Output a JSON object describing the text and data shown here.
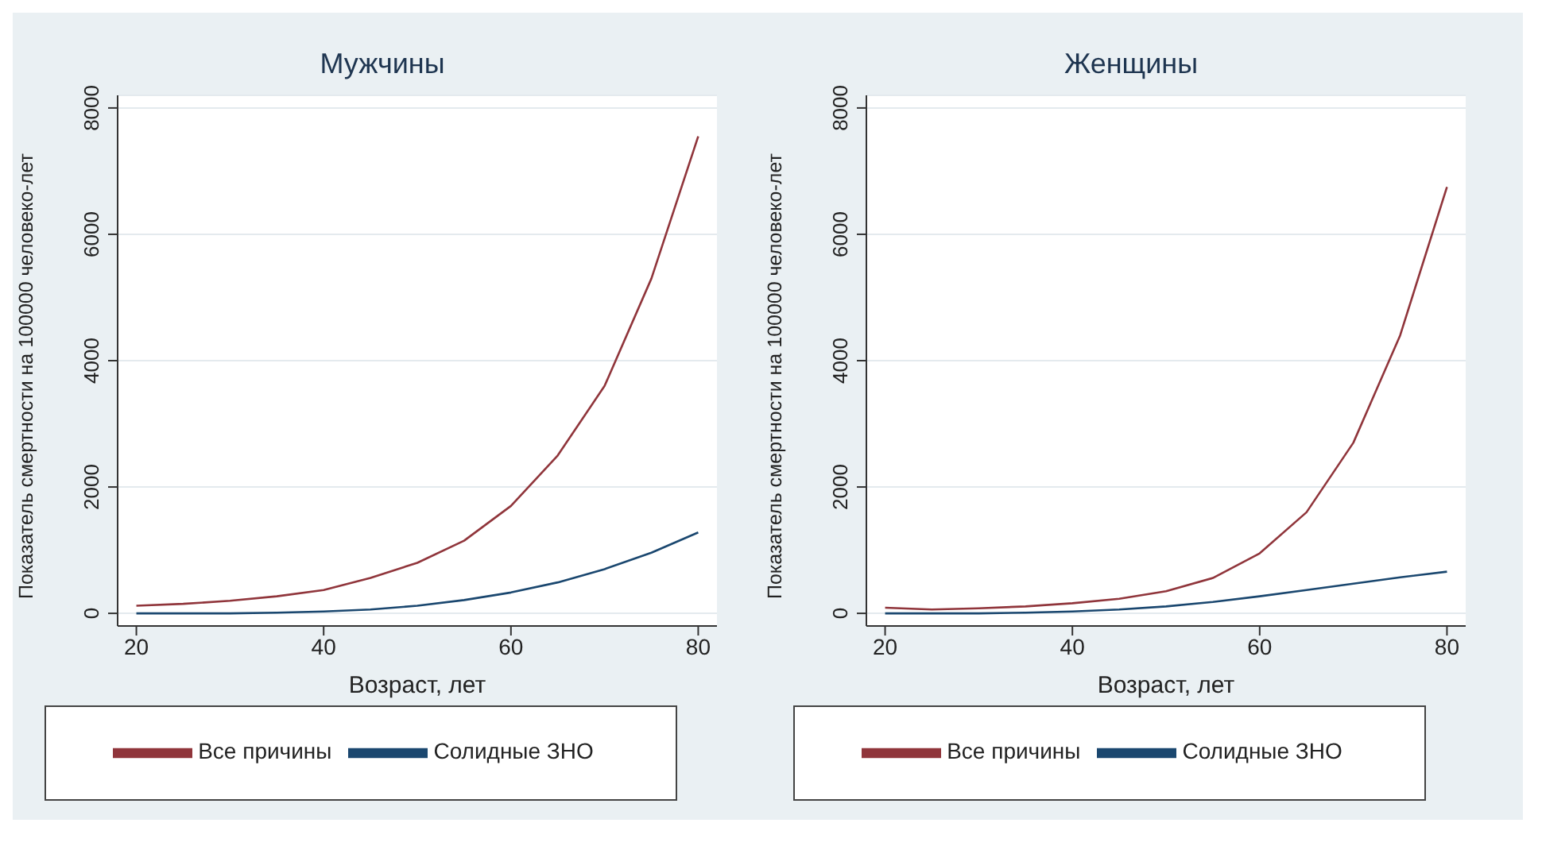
{
  "chart_data": [
    {
      "type": "line",
      "title": "Мужчины",
      "xlabel": "Возраст, лет",
      "ylabel": "Показатель смертности на 100000 человеко-лет",
      "x": [
        20,
        25,
        30,
        35,
        40,
        45,
        50,
        55,
        60,
        65,
        70,
        75,
        80
      ],
      "xlim": [
        18,
        82
      ],
      "xticks": [
        20,
        40,
        60,
        80
      ],
      "ylim": [
        -200,
        8200
      ],
      "yticks": [
        0,
        2000,
        4000,
        6000,
        8000
      ],
      "grid": "y",
      "legend": "bottom",
      "marker": "none",
      "series": [
        {
          "name": "Солидные ЗНО",
          "color": "#1a476f",
          "values": [
            0,
            0,
            0,
            10,
            30,
            60,
            120,
            210,
            330,
            490,
            700,
            960,
            1280
          ]
        },
        {
          "name": "Все причины",
          "color": "#90353b",
          "values": [
            120,
            150,
            200,
            270,
            370,
            560,
            800,
            1150,
            1700,
            2500,
            3600,
            5300,
            7550
          ]
        }
      ]
    },
    {
      "type": "line",
      "title": "Женщины",
      "xlabel": "Возраст, лет",
      "ylabel": "Показатель смертности на 100000 человеко-лет",
      "x": [
        20,
        25,
        30,
        35,
        40,
        45,
        50,
        55,
        60,
        65,
        70,
        75,
        80
      ],
      "xlim": [
        18,
        82
      ],
      "xticks": [
        20,
        40,
        60,
        80
      ],
      "ylim": [
        -200,
        8200
      ],
      "yticks": [
        0,
        2000,
        4000,
        6000,
        8000
      ],
      "grid": "y",
      "legend": "bottom",
      "marker": "none",
      "series": [
        {
          "name": "Солидные ЗНО",
          "color": "#1a476f",
          "values": [
            0,
            0,
            0,
            10,
            30,
            60,
            110,
            180,
            270,
            370,
            470,
            570,
            660
          ]
        },
        {
          "name": "Все причины",
          "color": "#90353b",
          "values": [
            90,
            60,
            80,
            110,
            160,
            230,
            350,
            560,
            950,
            1600,
            2700,
            4400,
            6750
          ]
        }
      ]
    }
  ]
}
